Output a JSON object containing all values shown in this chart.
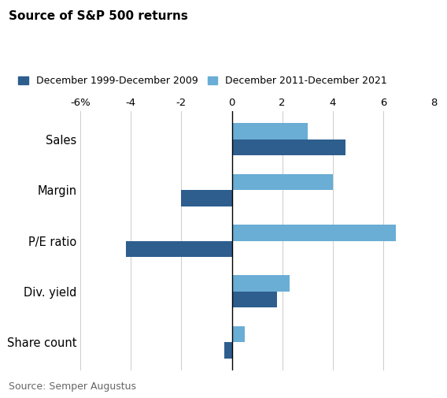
{
  "title": "Source of S&P 500 returns",
  "categories": [
    "Sales",
    "Margin",
    "P/E ratio",
    "Div. yield",
    "Share count"
  ],
  "series1_label": "December 1999-December 2009",
  "series2_label": "December 2011-December 2021",
  "series1_values": [
    4.5,
    -2.0,
    -4.2,
    1.8,
    -0.3
  ],
  "series2_values": [
    3.0,
    4.0,
    6.5,
    2.3,
    0.5
  ],
  "color1": "#2E5E8E",
  "color2": "#6aadd5",
  "xlim": [
    -6,
    8
  ],
  "xticks": [
    -6,
    -4,
    -2,
    0,
    2,
    4,
    6,
    8
  ],
  "xticklabels": [
    "-6%",
    "-4",
    "-2",
    "0",
    "2",
    "4",
    "6",
    "8"
  ],
  "source_text": "Source: Semper Augustus",
  "bar_height": 0.32,
  "background_color": "#ffffff"
}
